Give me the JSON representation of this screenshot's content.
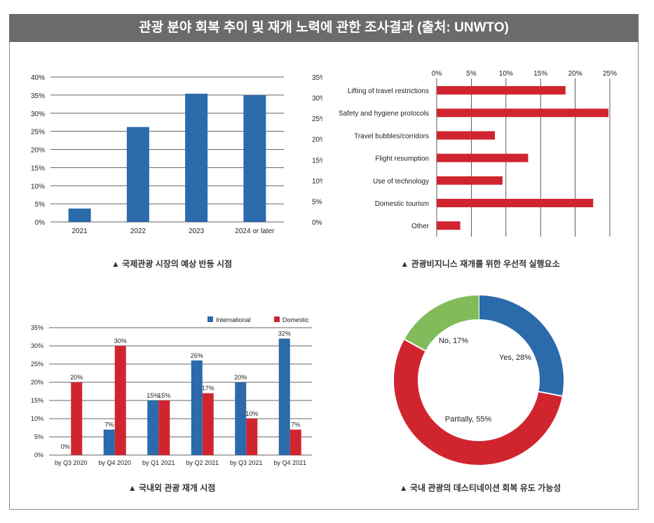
{
  "title": "관광 분야 회복 추이 및 재개 노력에 관한 조사결과 (출처: UNWTO)",
  "colors": {
    "blue": "#2b6aab",
    "red": "#d0252f",
    "green": "#82bc5a",
    "title_bg": "#6b6b6b"
  },
  "chart_data": [
    {
      "type": "bar",
      "caption": "▲ 국제관광 시장의 예상 반등 시점",
      "categories": [
        "2021",
        "2022",
        "2023",
        "2024 or later"
      ],
      "values": [
        3.7,
        26.2,
        35.4,
        35.0
      ],
      "ylim": [
        0,
        40
      ],
      "left_ticks": [
        "0%",
        "5%",
        "10%",
        "15%",
        "20%",
        "25%",
        "30%",
        "35%",
        "40%"
      ],
      "right_ticks": [
        "0%",
        "5%",
        "10%",
        "15%",
        "20%",
        "25%",
        "30%",
        "35%"
      ],
      "grid": true
    },
    {
      "type": "bar",
      "orientation": "horizontal",
      "caption": "▲ 관광비지니스 재개를 위한 우선적 실행요소",
      "categories": [
        "Lifting of travel restrictions",
        "Safety and hygiene protocols",
        "Travel bubbles/corridors",
        "Flight resumption",
        "Use of technology",
        "Domestic tourism",
        "Other"
      ],
      "values": [
        18.6,
        24.8,
        8.4,
        13.2,
        9.5,
        22.6,
        3.4
      ],
      "xlim": [
        0,
        25
      ],
      "ticks": [
        "0%",
        "5%",
        "10%",
        "15%",
        "20%",
        "25%"
      ],
      "grid": true
    },
    {
      "type": "bar",
      "caption": "▲ 국내외 관광 재개 시점",
      "categories": [
        "by Q3 2020",
        "by Q4 2020",
        "by Q1 2021",
        "by Q2 2021",
        "by Q3 2021",
        "by Q4 2021"
      ],
      "series": [
        {
          "name": "International",
          "values": [
            0,
            7,
            15,
            26,
            20,
            32
          ],
          "labels": [
            "0%",
            "7%",
            "15%",
            "26%",
            "20%",
            "32%"
          ]
        },
        {
          "name": "Domestic",
          "values": [
            20,
            30,
            15,
            17,
            10,
            7
          ],
          "labels": [
            "20%",
            "30%",
            "15%",
            "17%",
            "10%",
            "7%"
          ]
        }
      ],
      "ylim": [
        0,
        35
      ],
      "ticks": [
        "0%",
        "5%",
        "10%",
        "15%",
        "20%",
        "25%",
        "30%",
        "35%"
      ],
      "legend": "top-right",
      "grid": true
    },
    {
      "type": "pie",
      "style": "donut",
      "caption": "▲ 국내 관광의 데스티네이션 회복  유도 가능성",
      "slices": [
        {
          "label": "Yes, 28%",
          "value": 28,
          "color": "#2b6aab"
        },
        {
          "label": "Partially, 55%",
          "value": 55,
          "color": "#d0252f"
        },
        {
          "label": "No, 17%",
          "value": 17,
          "color": "#82bc5a"
        }
      ]
    }
  ]
}
